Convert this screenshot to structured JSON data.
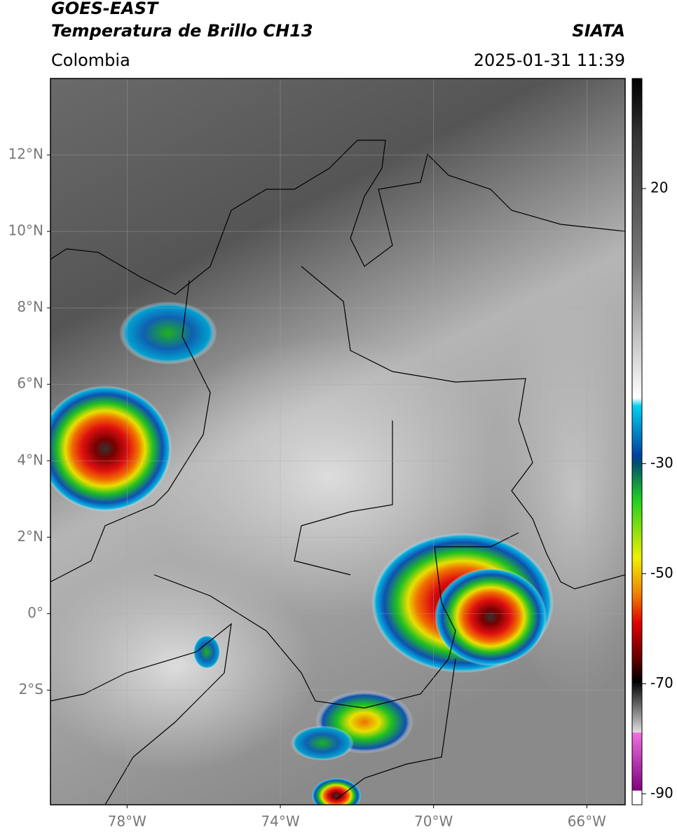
{
  "header": {
    "satellite": "GOES-EAST",
    "product": "Temperatura de Brillo CH13",
    "organization": "SIATA",
    "region": "Colombia",
    "datetime": "2025-01-31 11:39"
  },
  "map": {
    "xlim": [
      -80,
      -65
    ],
    "ylim": [
      -5,
      14
    ],
    "xticks": [
      {
        "value": -78,
        "label": "78°W"
      },
      {
        "value": -74,
        "label": "74°W"
      },
      {
        "value": -70,
        "label": "70°W"
      },
      {
        "value": -66,
        "label": "66°W"
      }
    ],
    "yticks": [
      {
        "value": 12,
        "label": "12°N"
      },
      {
        "value": 10,
        "label": "10°N"
      },
      {
        "value": 8,
        "label": "8°N"
      },
      {
        "value": 6,
        "label": "6°N"
      },
      {
        "value": 4,
        "label": "4°N"
      },
      {
        "value": 2,
        "label": "2°N"
      },
      {
        "value": 0,
        "label": "0°"
      },
      {
        "value": -2,
        "label": "2°S"
      }
    ],
    "grid": true
  },
  "colorbar": {
    "lim": [
      -92,
      40
    ],
    "ticks": [
      20,
      -30,
      -50,
      -70,
      -90
    ]
  }
}
